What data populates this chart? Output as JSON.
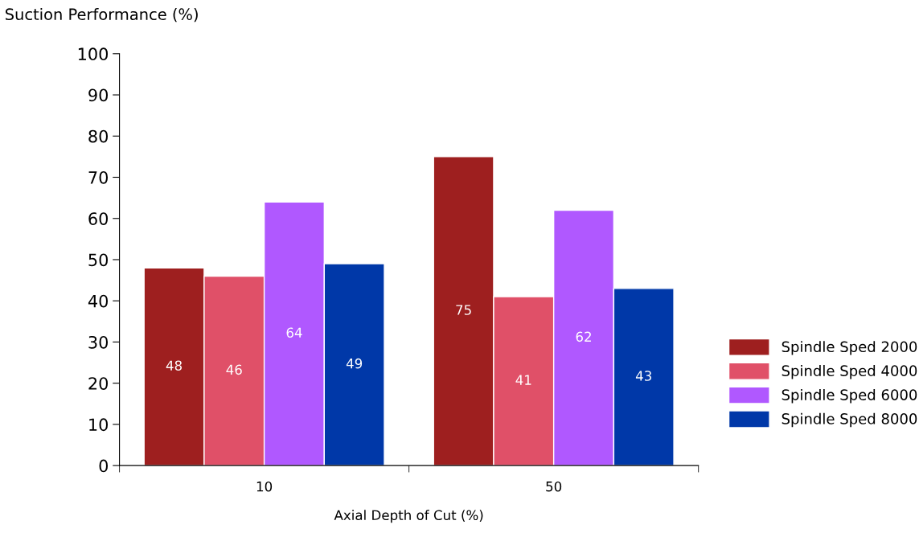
{
  "chart_data": {
    "type": "bar",
    "ylabel": "Suction Performance (%)",
    "xlabel": "Axial Depth of Cut (%)",
    "categories": [
      "10",
      "50"
    ],
    "series": [
      {
        "name": "Spindle Sped 2000",
        "color": "#9e1f1f",
        "values": [
          48,
          75
        ]
      },
      {
        "name": "Spindle Sped 4000",
        "color": "#e05068",
        "values": [
          46,
          41
        ]
      },
      {
        "name": "Spindle Sped 6000",
        "color": "#b058ff",
        "values": [
          64,
          62
        ]
      },
      {
        "name": "Spindle Sped 8000",
        "color": "#0038a8",
        "values": [
          49,
          43
        ]
      }
    ],
    "ylim": [
      0,
      100
    ],
    "yticks": [
      0,
      10,
      20,
      30,
      40,
      50,
      60,
      70,
      80,
      90,
      100
    ],
    "data_labels": true,
    "grid": false,
    "legend": "right"
  }
}
